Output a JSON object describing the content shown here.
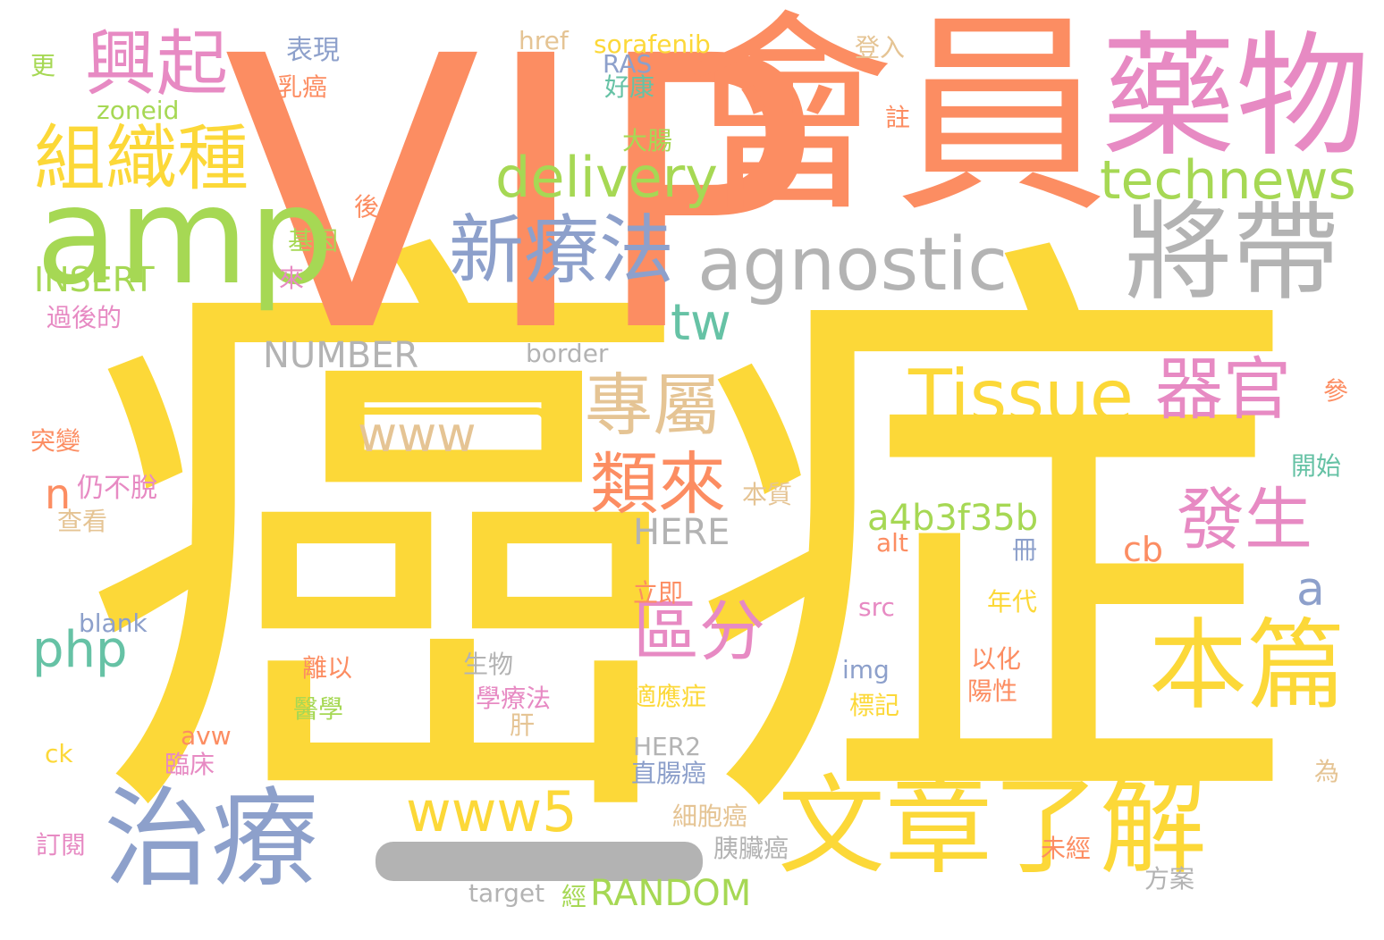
{
  "palette": {
    "yellow": "#fcd838",
    "orange": "#fc8d62",
    "pink": "#e78ac3",
    "blue": "#8da0cb",
    "green": "#a6d854",
    "gray": "#b3b3b3",
    "tan": "#e5c494",
    "teal": "#66c2a5"
  },
  "words": [
    {
      "text": "癌症",
      "color": "yellow"
    },
    {
      "text": "VIP",
      "color": "orange"
    },
    {
      "text": "會員",
      "color": "orange"
    },
    {
      "text": "藥物",
      "color": "pink"
    },
    {
      "text": "amp",
      "color": "green"
    },
    {
      "text": "將帶",
      "color": "gray"
    },
    {
      "text": "治療",
      "color": "blue"
    },
    {
      "text": "文章了解",
      "color": "yellow"
    },
    {
      "text": "本篇",
      "color": "yellow"
    },
    {
      "text": "新療法",
      "color": "blue"
    },
    {
      "text": "agnostic",
      "color": "gray"
    },
    {
      "text": "興起",
      "color": "pink"
    },
    {
      "text": "組織種",
      "color": "yellow"
    },
    {
      "text": "Tissue",
      "color": "yellow"
    },
    {
      "text": "器官",
      "color": "pink"
    },
    {
      "text": "專屬",
      "color": "tan"
    },
    {
      "text": "類來",
      "color": "orange"
    },
    {
      "text": "發生",
      "color": "pink"
    },
    {
      "text": "區分",
      "color": "pink"
    },
    {
      "text": "delivery",
      "color": "green"
    },
    {
      "text": "technews",
      "color": "green"
    },
    {
      "text": "www5",
      "color": "yellow"
    },
    {
      "text": "www",
      "color": "tan"
    },
    {
      "text": "tw",
      "color": "teal"
    },
    {
      "text": "php",
      "color": "teal"
    },
    {
      "text": "a",
      "color": "blue"
    },
    {
      "text": "n",
      "color": "orange"
    },
    {
      "text": "a4b3f35b",
      "color": "green"
    },
    {
      "text": "RANDOM",
      "color": "green"
    },
    {
      "text": "NUMBER",
      "color": "gray"
    },
    {
      "text": "HERE",
      "color": "gray"
    },
    {
      "text": "INSERT",
      "color": "green"
    },
    {
      "text": "cb",
      "color": "orange"
    },
    {
      "text": "仍不脫",
      "color": "pink"
    },
    {
      "text": "表現",
      "color": "blue"
    },
    {
      "text": "乳癌",
      "color": "orange"
    },
    {
      "text": "zoneid",
      "color": "green"
    },
    {
      "text": "更",
      "color": "green"
    },
    {
      "text": "href",
      "color": "tan"
    },
    {
      "text": "sorafenib",
      "color": "yellow"
    },
    {
      "text": "RAS",
      "color": "blue"
    },
    {
      "text": "好康",
      "color": "teal"
    },
    {
      "text": "登入",
      "color": "tan"
    },
    {
      "text": "註",
      "color": "orange"
    },
    {
      "text": "大腸",
      "color": "green"
    },
    {
      "text": "後",
      "color": "orange"
    },
    {
      "text": "基因",
      "color": "green"
    },
    {
      "text": "來",
      "color": "pink"
    },
    {
      "text": "過後的",
      "color": "pink"
    },
    {
      "text": "border",
      "color": "gray"
    },
    {
      "text": "參",
      "color": "orange"
    },
    {
      "text": "突變",
      "color": "orange"
    },
    {
      "text": "開始",
      "color": "teal"
    },
    {
      "text": "本質",
      "color": "tan"
    },
    {
      "text": "查看",
      "color": "tan"
    },
    {
      "text": "alt",
      "color": "orange"
    },
    {
      "text": "冊",
      "color": "blue"
    },
    {
      "text": "立即",
      "color": "orange"
    },
    {
      "text": "src",
      "color": "pink"
    },
    {
      "text": "年代",
      "color": "yellow"
    },
    {
      "text": "blank",
      "color": "blue"
    },
    {
      "text": "生物",
      "color": "gray"
    },
    {
      "text": "離以",
      "color": "orange"
    },
    {
      "text": "img",
      "color": "blue"
    },
    {
      "text": "以化",
      "color": "orange"
    },
    {
      "text": "陽性",
      "color": "orange"
    },
    {
      "text": "學療法",
      "color": "pink"
    },
    {
      "text": "適應症",
      "color": "yellow"
    },
    {
      "text": "醫學",
      "color": "green"
    },
    {
      "text": "標記",
      "color": "yellow"
    },
    {
      "text": "肝",
      "color": "tan"
    },
    {
      "text": "avw",
      "color": "orange"
    },
    {
      "text": "HER2",
      "color": "gray"
    },
    {
      "text": "ck",
      "color": "yellow"
    },
    {
      "text": "臨床",
      "color": "pink"
    },
    {
      "text": "直腸癌",
      "color": "blue"
    },
    {
      "text": "為",
      "color": "tan"
    },
    {
      "text": "細胞癌",
      "color": "tan"
    },
    {
      "text": "訂閱",
      "color": "pink"
    },
    {
      "text": "胰臟癌",
      "color": "gray"
    },
    {
      "text": "未經",
      "color": "orange"
    },
    {
      "text": "方案",
      "color": "gray"
    },
    {
      "text": "target",
      "color": "gray"
    },
    {
      "text": "經",
      "color": "green"
    }
  ]
}
